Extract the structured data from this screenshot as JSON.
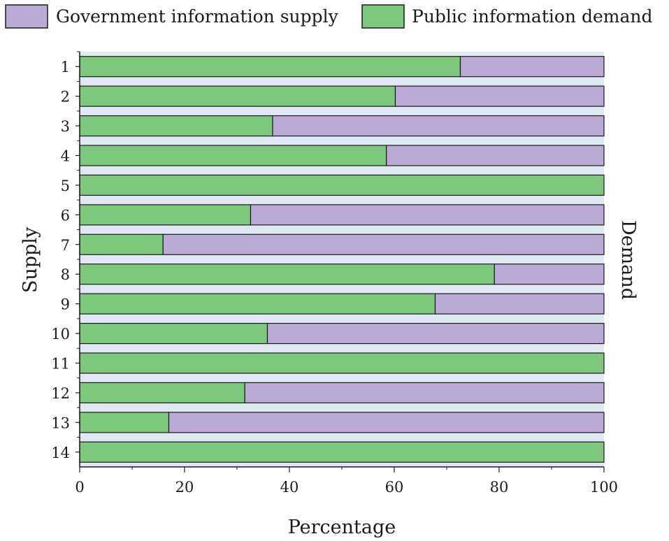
{
  "chart_data": {
    "type": "bar",
    "orientation": "horizontal",
    "stacked": true,
    "categories": [
      "1",
      "2",
      "3",
      "4",
      "5",
      "6",
      "7",
      "8",
      "9",
      "10",
      "11",
      "12",
      "13",
      "14"
    ],
    "series": [
      {
        "name": "Public information demand",
        "color": "#7ec87e",
        "values": [
          72.6,
          60.2,
          36.8,
          58.5,
          100,
          32.6,
          15.9,
          79.1,
          67.8,
          35.8,
          100,
          31.5,
          17.0,
          100
        ]
      },
      {
        "name": "Government information supply",
        "color": "#bcaad6",
        "values": [
          27.4,
          39.8,
          63.2,
          41.5,
          0,
          67.4,
          84.1,
          20.9,
          32.2,
          64.2,
          0,
          68.5,
          83.0,
          0
        ]
      }
    ],
    "xlabel": "Percentage",
    "ylabel_left": "Supply",
    "ylabel_right": "Demand",
    "xlim": [
      0,
      100
    ],
    "xticks": [
      "0",
      "20",
      "40",
      "60",
      "80",
      "100"
    ],
    "legend": {
      "placement": "top",
      "entries": [
        "Government information supply",
        "Public information demand"
      ]
    },
    "background_band_color": "#dfe8f3"
  }
}
